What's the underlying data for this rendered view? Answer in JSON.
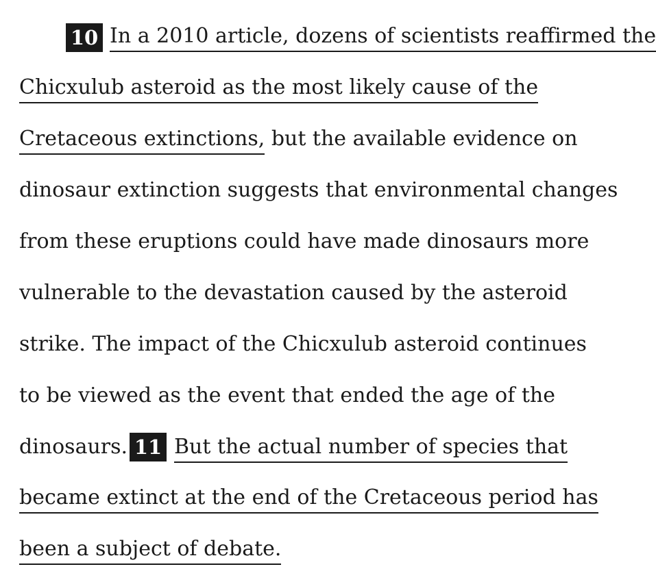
{
  "passage": {
    "markers": [
      {
        "number": "10"
      },
      {
        "number": "11"
      }
    ],
    "lines": [
      {
        "parts": [
          {
            "text": "In a 2010 article, dozens of scientists reaffirmed the",
            "underline": true
          }
        ]
      },
      {
        "parts": [
          {
            "text": "Chicxulub asteroid as the most likely cause of the",
            "underline": true
          }
        ]
      },
      {
        "parts": [
          {
            "text": "Cretaceous extinctions,",
            "underline": true
          },
          {
            "text": " but the available evidence on",
            "underline": false
          }
        ]
      },
      {
        "parts": [
          {
            "text": "dinosaur extinction suggests that environmental changes",
            "underline": false
          }
        ]
      },
      {
        "parts": [
          {
            "text": "from these eruptions could have made dinosaurs more",
            "underline": false
          }
        ]
      },
      {
        "parts": [
          {
            "text": "vulnerable to the devastation caused by the asteroid",
            "underline": false
          }
        ]
      },
      {
        "parts": [
          {
            "text": "strike. The impact of the Chicxulub asteroid continues",
            "underline": false
          }
        ]
      },
      {
        "parts": [
          {
            "text": "to be viewed as the event that ended the age of the",
            "underline": false
          }
        ]
      },
      {
        "parts": [
          {
            "text": "dinosaurs. ",
            "underline": false
          },
          {
            "text": "But the actual number of species that",
            "underline": true
          }
        ]
      },
      {
        "parts": [
          {
            "text": "became extinct at the end of the Cretaceous period has",
            "underline": true
          }
        ]
      },
      {
        "parts": [
          {
            "text": "been a subject of debate.",
            "underline": true
          }
        ]
      }
    ]
  }
}
